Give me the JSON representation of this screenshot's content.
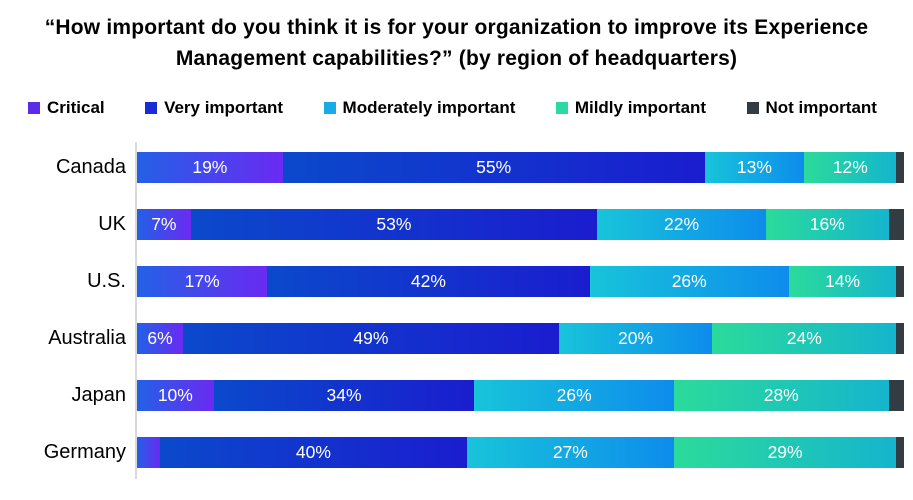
{
  "title": "“How important do you think it is for your organization to improve its Experience Management capabilities?”  (by region of headquarters)",
  "chart_data": {
    "type": "bar",
    "orientation": "horizontal",
    "stacked": true,
    "unit": "percent",
    "xlim": [
      0,
      100
    ],
    "grid": false,
    "legend_position": "top",
    "categories": [
      "Canada",
      "UK",
      "U.S.",
      "Australia",
      "Japan",
      "Germany"
    ],
    "series": [
      {
        "name": "Critical",
        "swatch_color": "#5b2be8",
        "gradient_from": "#2361e6",
        "gradient_to": "#6a2af2",
        "values": [
          19,
          7,
          17,
          6,
          10,
          3
        ],
        "labels": [
          "19%",
          "7%",
          "17%",
          "6%",
          "10%",
          ""
        ]
      },
      {
        "name": "Very important",
        "swatch_color": "#1b2bd5",
        "gradient_from": "#0b49cc",
        "gradient_to": "#1a1dce",
        "values": [
          55,
          53,
          42,
          49,
          34,
          40
        ],
        "labels": [
          "55%",
          "53%",
          "42%",
          "49%",
          "34%",
          "40%"
        ]
      },
      {
        "name": "Moderately important",
        "swatch_color": "#18abe8",
        "gradient_from": "#18c4da",
        "gradient_to": "#0d8cec",
        "values": [
          13,
          22,
          26,
          20,
          26,
          27
        ],
        "labels": [
          "13%",
          "22%",
          "26%",
          "20%",
          "26%",
          "27%"
        ]
      },
      {
        "name": "Mildly important",
        "swatch_color": "#2bd9a4",
        "gradient_from": "#2bdb9b",
        "gradient_to": "#14b5cd",
        "values": [
          12,
          16,
          14,
          24,
          28,
          29
        ],
        "labels": [
          "12%",
          "16%",
          "14%",
          "24%",
          "28%",
          "29%"
        ]
      },
      {
        "name": "Not important",
        "swatch_color": "#333c43",
        "gradient_from": "#333c43",
        "gradient_to": "#333c43",
        "values": [
          1,
          2,
          1,
          1,
          2,
          1
        ],
        "labels": [
          "",
          "",
          "",
          "",
          "",
          ""
        ]
      }
    ]
  }
}
